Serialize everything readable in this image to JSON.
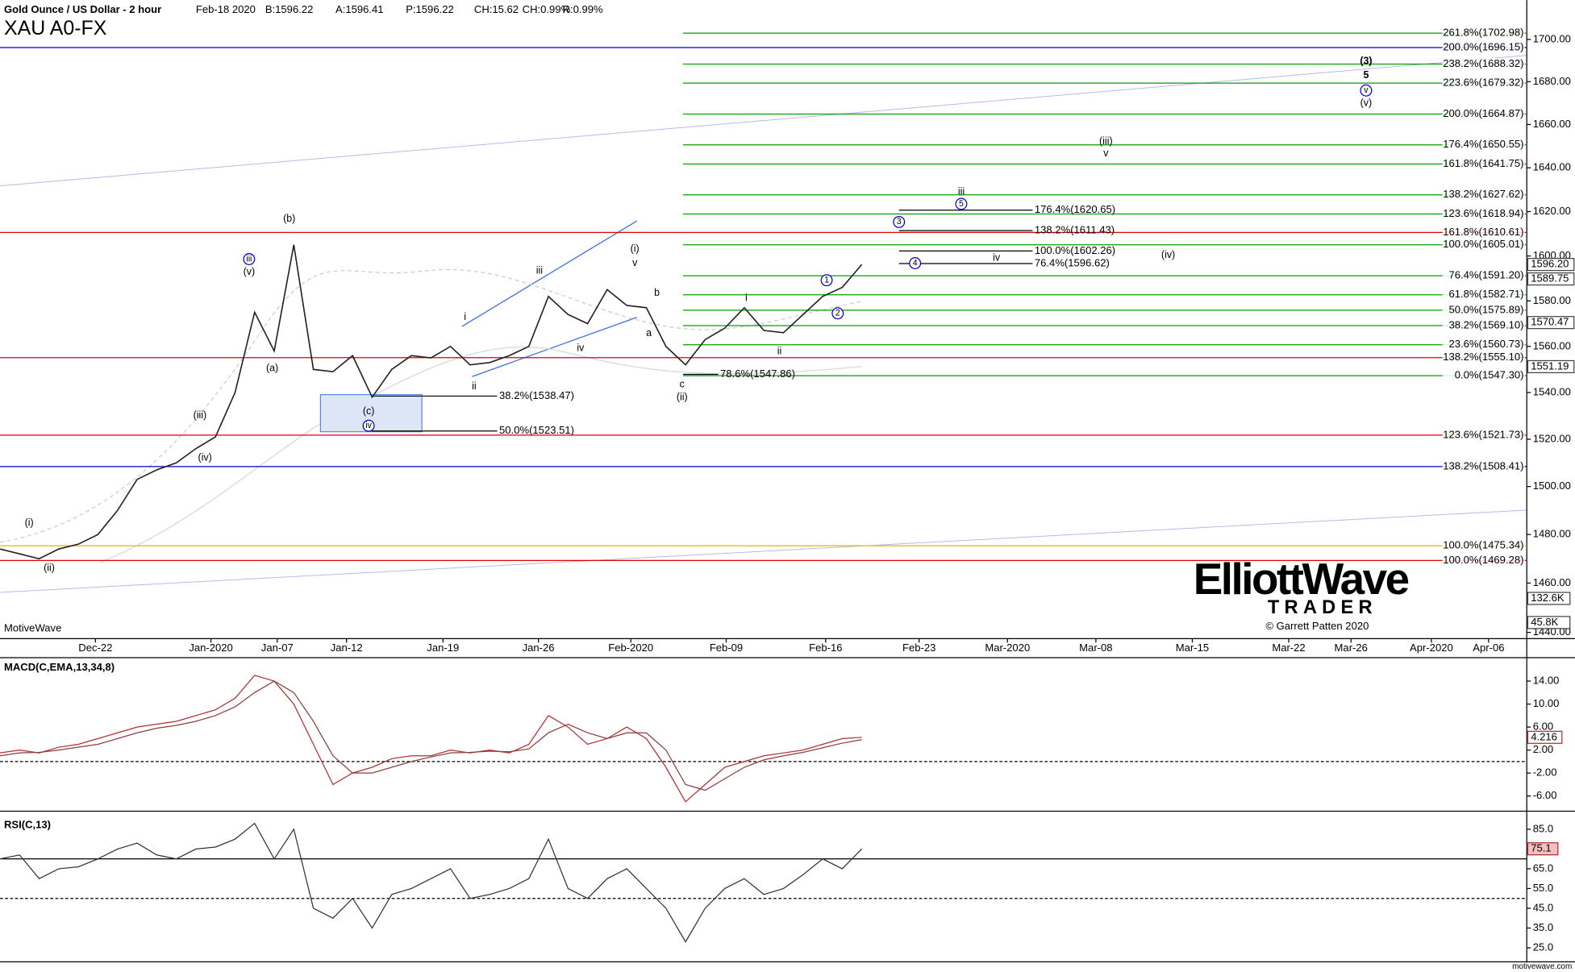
{
  "header": {
    "title": "Gold Ounce / US Dollar - 2 hour",
    "date": "Feb-18 2020",
    "bid": "B:1596.22",
    "ask": "A:1596.41",
    "price": "P:1596.22",
    "change": "CH:15.62",
    "change_pct": "CH:0.99%",
    "range": "R:0.99%",
    "symbol": "XAU A0-FX"
  },
  "footer": {
    "brand": "MotiveWave",
    "site": "motivewave.com",
    "copyright": "© Garrett Patten 2020",
    "logo_top": "ElliottWave",
    "logo_bottom": "TRADER"
  },
  "chart_data": [
    {
      "type": "line",
      "title": "XAU A0-FX",
      "color": "#222222",
      "log": true,
      "values": [
        1474,
        1472,
        1470,
        1474,
        1476,
        1480,
        1490,
        1503,
        1507,
        1510,
        1516,
        1521,
        1540,
        1575,
        1558,
        1605,
        1550,
        1549,
        1556,
        1538,
        1550,
        1556,
        1555,
        1560,
        1552,
        1553,
        1556,
        1560,
        1582,
        1574,
        1570,
        1585,
        1578,
        1577,
        1560,
        1552,
        1563,
        1568,
        1577,
        1567,
        1566,
        1574,
        1582,
        1586,
        1596.22
      ],
      "ylim": [
        1437.5,
        1718.8
      ],
      "yticks": [
        {
          "value": 1700,
          "label": "1700.00"
        },
        {
          "value": 1680,
          "label": "1680.00"
        },
        {
          "value": 1660,
          "label": "1660.00"
        },
        {
          "value": 1640,
          "label": "1640.00"
        },
        {
          "value": 1620,
          "label": "1620.00"
        },
        {
          "value": 1600,
          "label": "1600.00"
        },
        {
          "value": 1580,
          "label": "1580.00"
        },
        {
          "value": 1560,
          "label": "1560.00"
        },
        {
          "value": 1540,
          "label": "1540.00"
        },
        {
          "value": 1520,
          "label": "1520.00"
        },
        {
          "value": 1500,
          "label": "1500.00"
        },
        {
          "value": 1480,
          "label": "1480.00"
        },
        {
          "value": 1460,
          "label": "1460.00"
        },
        {
          "value": 1440,
          "label": "1440.00"
        }
      ],
      "xtick_labels": [
        "Dec-22",
        "Jan-2020",
        "Jan-07",
        "Jan-12",
        "Jan-19",
        "Jan-26",
        "Feb-2020",
        "Feb-09",
        "Feb-16",
        "Feb-23",
        "Mar-2020",
        "Mar-08",
        "Mar-15",
        "Mar-22",
        "Mar-26",
        "Apr-2020",
        "Apr-06"
      ],
      "price_tags": [
        {
          "value": 1596.2,
          "label": "1596.20"
        },
        {
          "value": 1589.75,
          "label": "1589.75"
        },
        {
          "value": 1570.47,
          "label": "1570.47"
        },
        {
          "value": 1551.19,
          "label": "1551.19"
        }
      ],
      "volume_tags": [
        "132.6K",
        "45.8K"
      ],
      "fib_levels": [
        {
          "value": 1702.98,
          "label": "261.8%(1702.98)",
          "color": "#00a000"
        },
        {
          "value": 1696.15,
          "label": "200.0%(1696.15)",
          "color": "#0000cc"
        },
        {
          "value": 1688.32,
          "label": "238.2%(1688.32)",
          "color": "#00a000"
        },
        {
          "value": 1679.32,
          "label": "223.6%(1679.32)",
          "color": "#00a000"
        },
        {
          "value": 1664.87,
          "label": "200.0%(1664.87)",
          "color": "#00a000"
        },
        {
          "value": 1650.55,
          "label": "176.4%(1650.55)",
          "color": "#00a000"
        },
        {
          "value": 1641.75,
          "label": "161.8%(1641.75)",
          "color": "#00a000"
        },
        {
          "value": 1627.62,
          "label": "138.2%(1627.62)",
          "color": "#00a000"
        },
        {
          "value": 1618.94,
          "label": "123.6%(1618.94)",
          "color": "#00a000"
        },
        {
          "value": 1610.61,
          "label": "161.8%(1610.61)",
          "color": "#e00000"
        },
        {
          "value": 1605.01,
          "label": "100.0%(1605.01)",
          "color": "#00a000"
        },
        {
          "value": 1591.2,
          "label": "76.4%(1591.20)",
          "color": "#00a000"
        },
        {
          "value": 1582.71,
          "label": "61.8%(1582.71)",
          "color": "#00a000"
        },
        {
          "value": 1575.89,
          "label": "50.0%(1575.89)",
          "color": "#00a000"
        },
        {
          "value": 1569.1,
          "label": "38.2%(1569.10)",
          "color": "#00a000"
        },
        {
          "value": 1560.73,
          "label": "23.6%(1560.73)",
          "color": "#00a000"
        },
        {
          "value": 1555.1,
          "label": "138.2%(1555.10)",
          "color": "#e00000"
        },
        {
          "value": 1547.3,
          "label": "0.0%(1547.30)",
          "color": "#00a000"
        },
        {
          "value": 1521.73,
          "label": "123.6%(1521.73)",
          "color": "#e00000"
        },
        {
          "value": 1508.41,
          "label": "138.2%(1508.41)",
          "color": "#0000cc"
        },
        {
          "value": 1475.34,
          "label": "100.0%(1475.34)",
          "color": "#f0b000"
        },
        {
          "value": 1469.28,
          "label": "100.0%(1469.28)",
          "color": "#e00000"
        }
      ],
      "projection_levels": [
        {
          "value": 1620.65,
          "label": "176.4%(1620.65)"
        },
        {
          "value": 1611.43,
          "label": "138.2%(1611.43)"
        },
        {
          "value": 1602.26,
          "label": "100.0%(1602.26)"
        },
        {
          "value": 1596.62,
          "label": "76.4%(1596.62)"
        }
      ],
      "left_levels": [
        {
          "value": 1538.47,
          "label": "38.2%(1538.47)"
        },
        {
          "value": 1523.51,
          "label": "50.0%(1523.51)"
        },
        {
          "value": 1547.86,
          "label": "78.6%(1547.86)"
        }
      ],
      "wave_labels": [
        "(i)",
        "(ii)",
        "(iii)",
        "(iv)",
        "iii",
        "(v)",
        "(a)",
        "(b)",
        "(c)",
        "iv",
        "i",
        "ii",
        "iii",
        "iv",
        "(i)",
        "v",
        "b",
        "a",
        "c",
        "(ii)",
        "i",
        "ii",
        "1",
        "2",
        "3",
        "4",
        "iii",
        "5",
        "iv",
        "(iv)",
        "(iii)",
        "v",
        "(3)",
        "5",
        "v",
        "(v)"
      ]
    },
    {
      "type": "macd",
      "title": "MACD(C,EMA,13,34,8)",
      "series": [
        {
          "color": "#b03030",
          "values": [
            1.5,
            2,
            1.5,
            2.5,
            3,
            4,
            5,
            6,
            6.5,
            7,
            8,
            9,
            11,
            15,
            14,
            10,
            3,
            -4,
            -2,
            -1,
            0.5,
            1,
            1,
            2,
            1.5,
            2,
            1.5,
            3,
            8,
            6,
            3,
            4,
            6,
            4,
            -1,
            -7,
            -4,
            -1,
            0,
            1,
            1.5,
            2,
            3,
            4,
            4.216
          ]
        },
        {
          "color": "#8a4040",
          "values": [
            1,
            1.5,
            1.6,
            2,
            2.5,
            3,
            4,
            5,
            5.8,
            6.3,
            7,
            8,
            9.5,
            12,
            14,
            12,
            7,
            1,
            -2,
            -2,
            -1,
            0,
            0.8,
            1.5,
            1.6,
            1.8,
            1.7,
            2.2,
            5,
            6.5,
            5,
            4,
            5,
            5,
            2,
            -4,
            -5,
            -3,
            -1,
            0.3,
            1,
            1.6,
            2.4,
            3.2,
            3.8
          ]
        }
      ],
      "value_tag": {
        "value": 4.216,
        "label": "4.216"
      },
      "ylim": [
        -8.3,
        17.9
      ],
      "zero": 0,
      "yticks": [
        {
          "value": 14,
          "label": "14.00"
        },
        {
          "value": 10,
          "label": "10.00"
        },
        {
          "value": 6,
          "label": "6.00"
        },
        {
          "value": 2,
          "label": "2.00"
        },
        {
          "value": -2,
          "label": "-2.00"
        },
        {
          "value": -6,
          "label": "-6.00"
        }
      ]
    },
    {
      "type": "rsi",
      "title": "RSI(C,13)",
      "color": "#333333",
      "values": [
        70,
        72,
        60,
        65,
        66,
        70,
        75,
        78,
        72,
        70,
        75,
        76,
        80,
        88,
        70,
        85,
        45,
        40,
        50,
        35,
        52,
        55,
        60,
        65,
        50,
        52,
        55,
        60,
        80,
        55,
        50,
        60,
        65,
        55,
        45,
        28,
        45,
        55,
        60,
        52,
        55,
        62,
        70,
        65,
        75.1
      ],
      "levels": [
        70,
        50
      ],
      "ylim": [
        17.9,
        93.1
      ],
      "yticks": [
        {
          "value": 85,
          "label": "85.0"
        },
        {
          "value": 75,
          "label": "75.0"
        },
        {
          "value": 65,
          "label": "65.0"
        },
        {
          "value": 55,
          "label": "55.0"
        },
        {
          "value": 45,
          "label": "45.0"
        },
        {
          "value": 35,
          "label": "35.0"
        },
        {
          "value": 25,
          "label": "25.0"
        }
      ]
    }
  ]
}
